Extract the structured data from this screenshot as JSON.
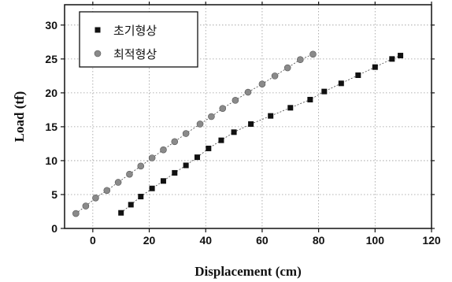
{
  "chart_data": {
    "type": "scatter",
    "xlabel": "Displacement (cm)",
    "ylabel": "Load (tf)",
    "xlim": [
      -10,
      120
    ],
    "ylim": [
      0,
      33
    ],
    "xticks": [
      0,
      20,
      40,
      60,
      80,
      100,
      120
    ],
    "yticks": [
      0,
      5,
      10,
      15,
      20,
      25,
      30
    ],
    "grid": true,
    "legend_position": "top-left",
    "series": [
      {
        "name": "초기형상",
        "marker": "square",
        "color": "#111111",
        "points": [
          [
            10,
            2.3
          ],
          [
            13.5,
            3.5
          ],
          [
            17,
            4.7
          ],
          [
            21,
            5.9
          ],
          [
            25,
            7.0
          ],
          [
            29,
            8.2
          ],
          [
            33,
            9.3
          ],
          [
            37,
            10.5
          ],
          [
            41,
            11.8
          ],
          [
            45.5,
            13.0
          ],
          [
            50,
            14.2
          ],
          [
            56,
            15.4
          ],
          [
            63,
            16.6
          ],
          [
            70,
            17.8
          ],
          [
            77,
            19.0
          ],
          [
            82,
            20.2
          ],
          [
            88,
            21.4
          ],
          [
            94,
            22.6
          ],
          [
            100,
            23.8
          ],
          [
            106,
            25.0
          ],
          [
            109,
            25.5
          ]
        ]
      },
      {
        "name": "최적형상",
        "marker": "circle",
        "color": "#8a8a8a",
        "points": [
          [
            -6,
            2.2
          ],
          [
            -2.5,
            3.3
          ],
          [
            1,
            4.5
          ],
          [
            5,
            5.6
          ],
          [
            9,
            6.8
          ],
          [
            13,
            8.0
          ],
          [
            17,
            9.2
          ],
          [
            21,
            10.4
          ],
          [
            25,
            11.6
          ],
          [
            29,
            12.8
          ],
          [
            33,
            14.0
          ],
          [
            38,
            15.4
          ],
          [
            42,
            16.5
          ],
          [
            46,
            17.7
          ],
          [
            50.5,
            18.9
          ],
          [
            55,
            20.1
          ],
          [
            60,
            21.3
          ],
          [
            64.5,
            22.5
          ],
          [
            69,
            23.7
          ],
          [
            73.5,
            24.9
          ],
          [
            78,
            25.7
          ]
        ]
      }
    ]
  }
}
